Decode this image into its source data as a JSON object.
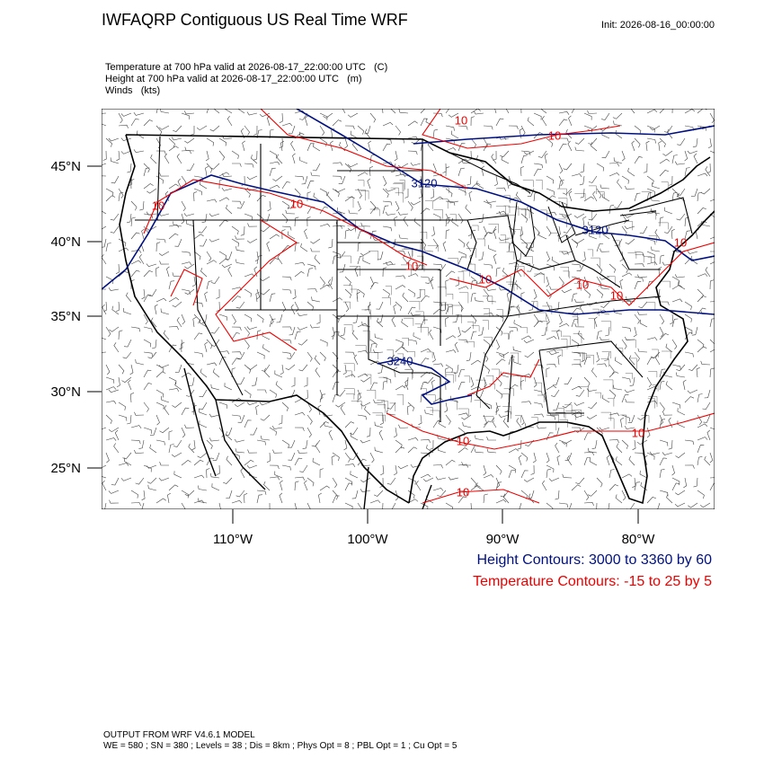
{
  "header": {
    "title": "IWFAQRP Contiguous US Real Time WRF",
    "init": "Init: 2026-08-16_00:00:00"
  },
  "fields": [
    "Temperature at 700 hPa valid at 2026-08-17_22:00:00 UTC   (C)",
    "Height at 700 hPa valid at 2026-08-17_22:00:00 UTC   (m)",
    "Winds   (kts)"
  ],
  "map": {
    "lat_labels": [
      "45°N",
      "40°N",
      "35°N",
      "30°N",
      "25°N"
    ],
    "lon_labels": [
      "110°W",
      "100°W",
      "90°W",
      "80°W"
    ],
    "height_contour_labels": [
      "3120",
      "3120",
      "3240"
    ],
    "temperature_contour_labels": [
      "10",
      "10",
      "10",
      "10",
      "10",
      "10",
      "10",
      "10",
      "10",
      "10",
      "10",
      "10"
    ]
  },
  "legend": {
    "height": "Height Contours: 3000 to 3360 by 60",
    "temperature": "Temperature Contours: -15 to 25 by 5"
  },
  "footer": [
    "OUTPUT FROM WRF V4.6.1 MODEL",
    "WE = 580 ; SN = 380 ; Levels = 38 ; Dis = 8km ; Phys Opt = 8 ; PBL Opt = 1 ; Cu Opt = 5"
  ]
}
